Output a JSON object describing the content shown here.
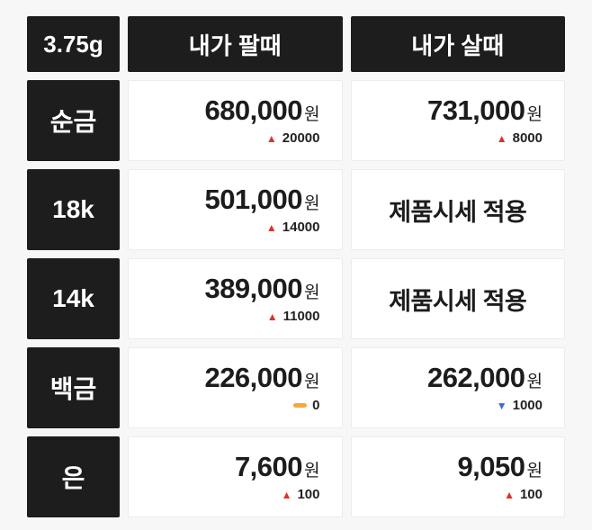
{
  "table": {
    "unit_label": "3.75g",
    "columns": {
      "sell": "내가 팔때",
      "buy": "내가 살때"
    },
    "rows": [
      {
        "label": "순금",
        "sell": {
          "price": "680,000",
          "unit": "원",
          "change_dir": "up",
          "change": "20000"
        },
        "buy": {
          "price": "731,000",
          "unit": "원",
          "change_dir": "up",
          "change": "8000"
        }
      },
      {
        "label": "18k",
        "sell": {
          "price": "501,000",
          "unit": "원",
          "change_dir": "up",
          "change": "14000"
        },
        "buy": {
          "text": "제품시세 적용"
        }
      },
      {
        "label": "14k",
        "sell": {
          "price": "389,000",
          "unit": "원",
          "change_dir": "up",
          "change": "11000"
        },
        "buy": {
          "text": "제품시세 적용"
        }
      },
      {
        "label": "백금",
        "sell": {
          "price": "226,000",
          "unit": "원",
          "change_dir": "flat",
          "change": "0"
        },
        "buy": {
          "price": "262,000",
          "unit": "원",
          "change_dir": "down",
          "change": "1000"
        }
      },
      {
        "label": "은",
        "sell": {
          "price": "7,600",
          "unit": "원",
          "change_dir": "up",
          "change": "100"
        },
        "buy": {
          "price": "9,050",
          "unit": "원",
          "change_dir": "up",
          "change": "100"
        }
      }
    ]
  },
  "colors": {
    "up": "#e03126",
    "down": "#3e6bd6",
    "flat": "#f5a93c",
    "dark_cell": "#1d1d1d"
  },
  "chart_data": {
    "type": "table",
    "columns": [
      "3.75g",
      "내가 팔때",
      "내가 살때"
    ],
    "rows": [
      {
        "label": "순금",
        "sell_price": 680000,
        "sell_change": 20000,
        "sell_dir": "up",
        "buy_price": 731000,
        "buy_change": 8000,
        "buy_dir": "up"
      },
      {
        "label": "18k",
        "sell_price": 501000,
        "sell_change": 14000,
        "sell_dir": "up",
        "buy_note": "제품시세 적용"
      },
      {
        "label": "14k",
        "sell_price": 389000,
        "sell_change": 11000,
        "sell_dir": "up",
        "buy_note": "제품시세 적용"
      },
      {
        "label": "백금",
        "sell_price": 226000,
        "sell_change": 0,
        "sell_dir": "flat",
        "buy_price": 262000,
        "buy_change": 1000,
        "buy_dir": "down"
      },
      {
        "label": "은",
        "sell_price": 7600,
        "sell_change": 100,
        "sell_dir": "up",
        "buy_price": 9050,
        "buy_change": 100,
        "buy_dir": "up"
      }
    ],
    "units": "원 (KRW)",
    "basis_weight": "3.75g"
  }
}
